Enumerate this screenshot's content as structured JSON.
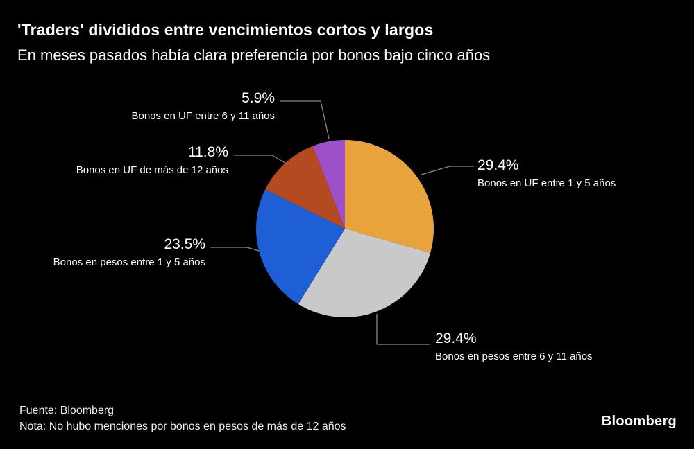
{
  "header": {
    "title": "'Traders' divididos entre vencimientos cortos y largos",
    "subtitle": "En meses pasados había clara preferencia por bonos bajo cinco años"
  },
  "chart_data": {
    "type": "pie",
    "unit": "%",
    "start_angle_deg": -90,
    "direction": "clockwise",
    "slices": [
      {
        "label": "Bonos en UF entre 1 y 5 años",
        "value": 29.4,
        "pct_label": "29.4%",
        "color": "#E8A33D"
      },
      {
        "label": "Bonos en pesos entre 6 y 11 años",
        "value": 29.4,
        "pct_label": "29.4%",
        "color": "#C9C9C9"
      },
      {
        "label": "Bonos en pesos entre 1 y 5 años",
        "value": 23.5,
        "pct_label": "23.5%",
        "color": "#1E5FD6"
      },
      {
        "label": "Bonos en UF de más de 12 años",
        "value": 11.8,
        "pct_label": "11.8%",
        "color": "#B5491F"
      },
      {
        "label": "Bonos en UF entre 6 y 11 años",
        "value": 5.9,
        "pct_label": "5.9%",
        "color": "#9D50C8"
      }
    ]
  },
  "footer": {
    "source": "Fuente: Bloomberg",
    "note": "Nota: No hubo menciones por bonos en pesos de más de 12 años",
    "brand": "Bloomberg"
  }
}
